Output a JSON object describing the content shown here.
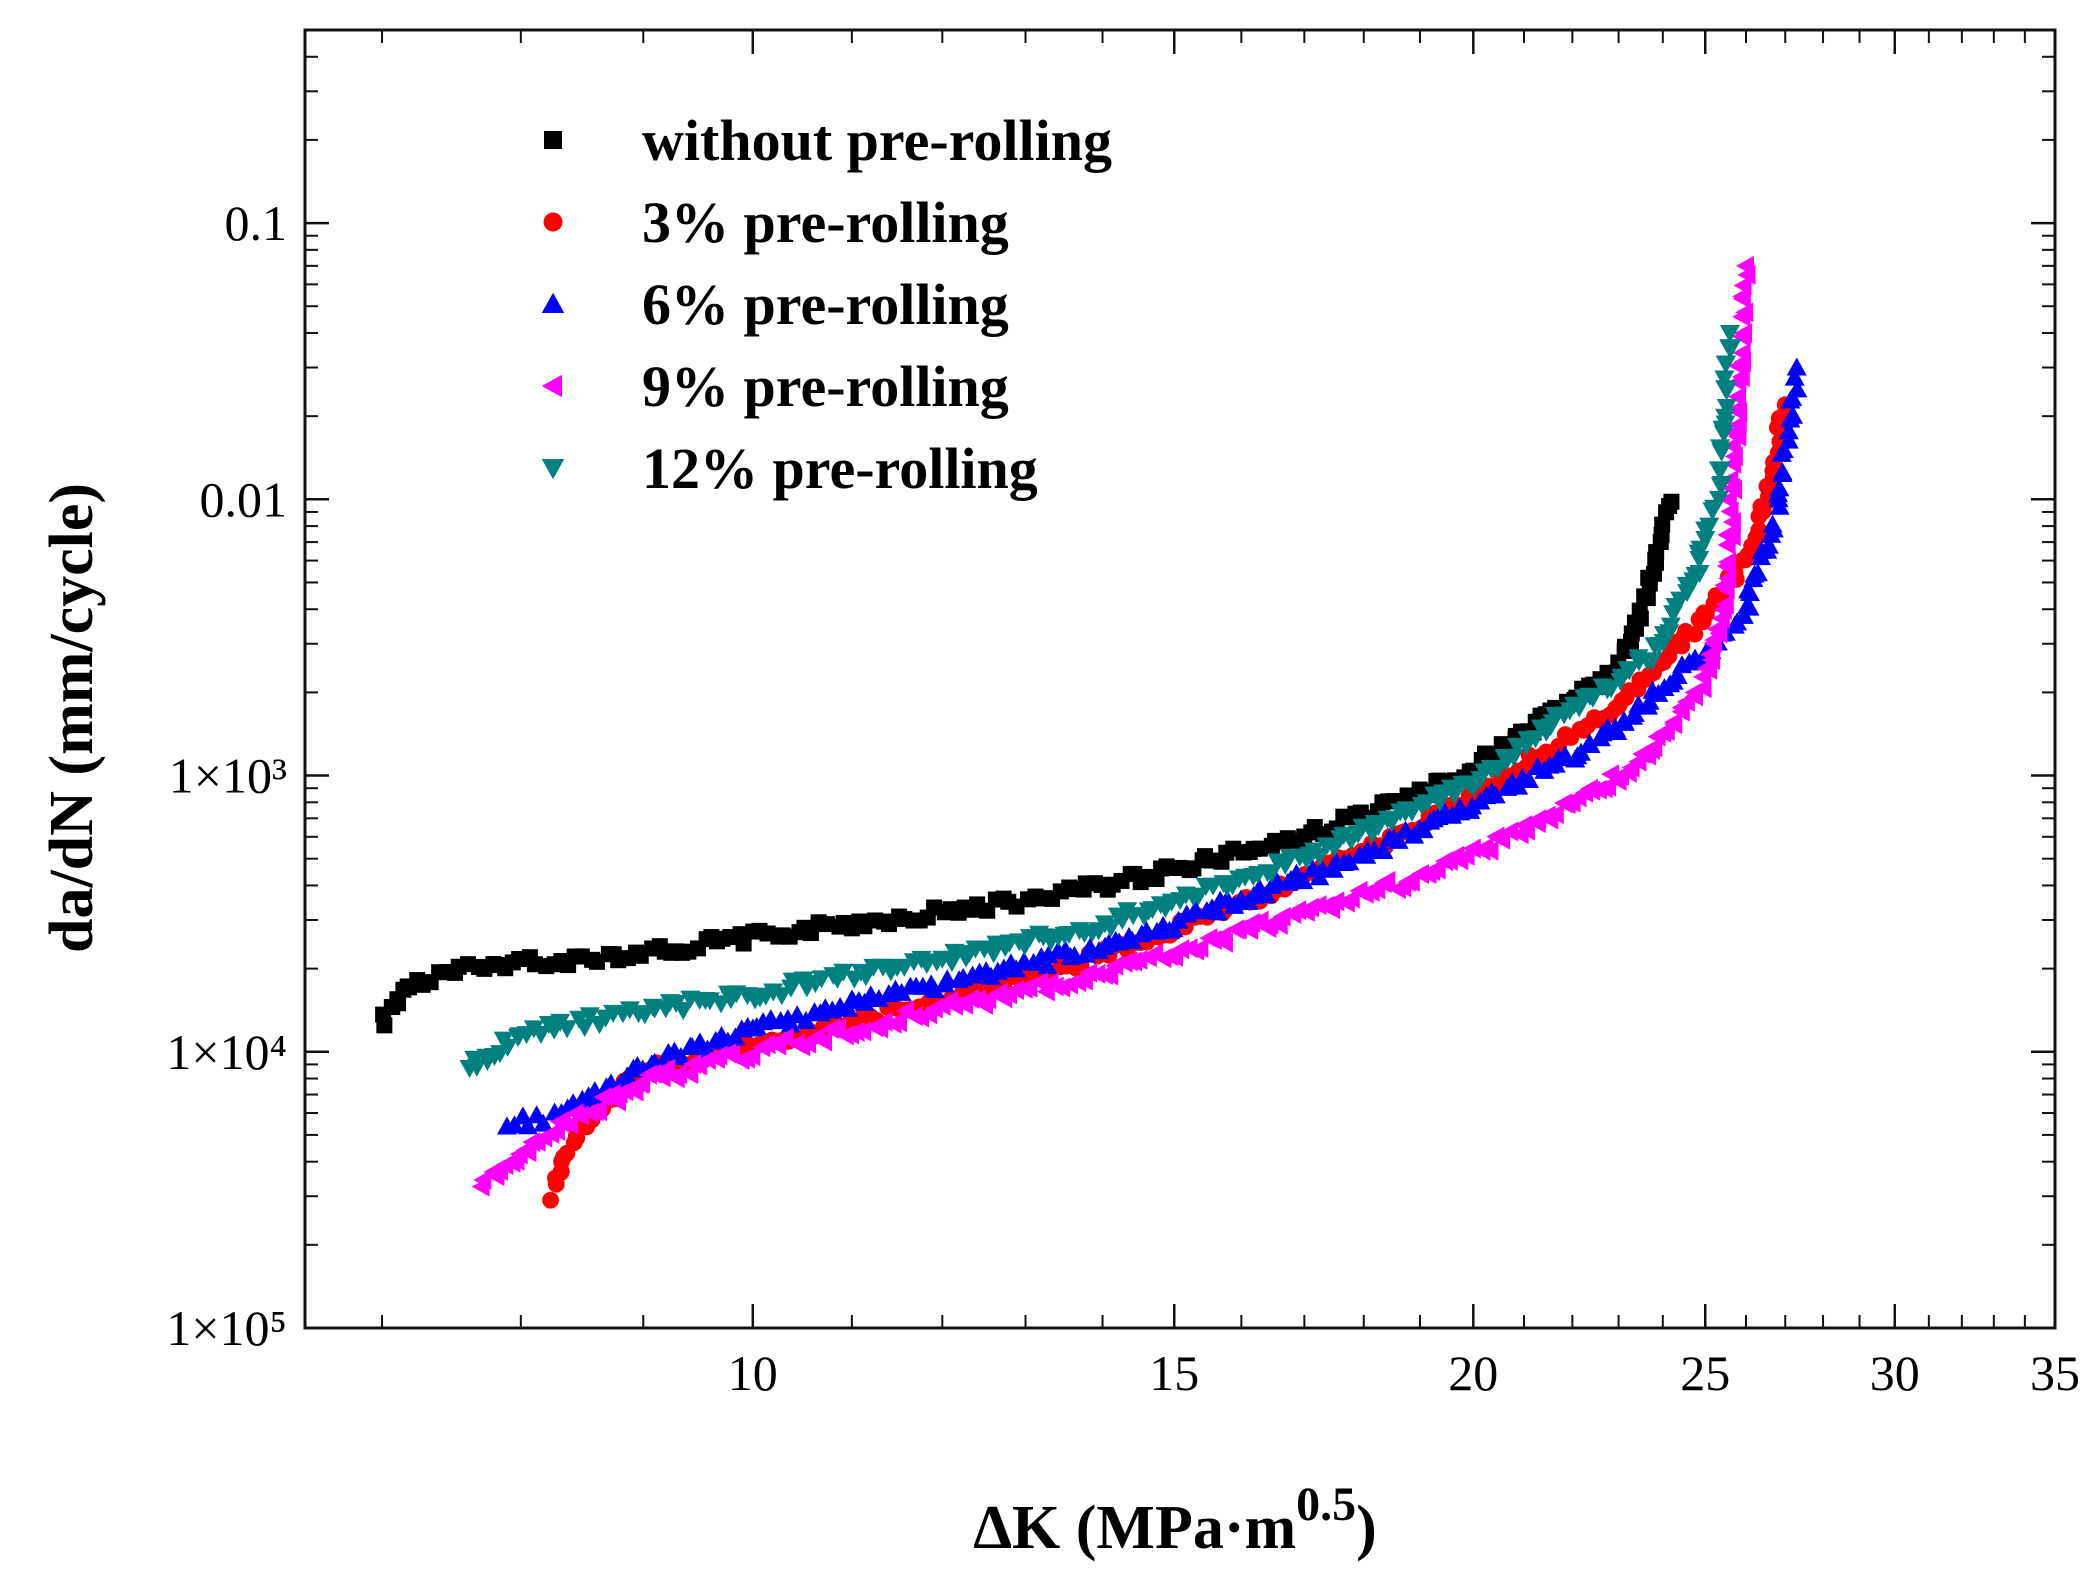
{
  "chart_data": {
    "type": "scatter",
    "title": "",
    "xlabel": "ΔK (MPa·m",
    "xlabel_sup": "0.5",
    "xlabel_close": ")",
    "ylabel": "da/dN (mm/cycle)",
    "x_scale": "log",
    "y_scale": "log",
    "xlim": [
      6.5,
      35
    ],
    "ylim": [
      1e-05,
      0.5
    ],
    "x_ticks": [
      10,
      15,
      20,
      25,
      30,
      35
    ],
    "x_tick_labels": [
      "10",
      "15",
      "20",
      "25",
      "30",
      "35"
    ],
    "y_ticks": [
      1e-05,
      0.0001,
      0.001,
      0.01,
      0.1
    ],
    "y_tick_labels": [
      "1×10⁵",
      "1×10⁴",
      "1×10³",
      "0.01",
      "0.1"
    ],
    "grid": false,
    "legend_position": "top-left",
    "series": [
      {
        "name": "without pre-rolling",
        "color": "#000000",
        "marker": "square",
        "x": [
          7.0,
          7.2,
          7.5,
          8.0,
          8.5,
          9.0,
          10.0,
          11.0,
          12.0,
          13.0,
          14.0,
          15.0,
          16.0,
          17.0,
          18.0,
          19.0,
          20.0,
          21.0,
          22.0,
          23.0,
          23.6,
          24.0,
          24.2
        ],
        "y": [
          0.00013,
          0.000175,
          0.000195,
          0.00021,
          0.000218,
          0.000228,
          0.00026,
          0.00029,
          0.00032,
          0.000355,
          0.0004,
          0.00046,
          0.00053,
          0.0006,
          0.00072,
          0.00085,
          0.00108,
          0.0014,
          0.0019,
          0.0024,
          0.0045,
          0.0075,
          0.0098
        ]
      },
      {
        "name": "3% pre-rolling",
        "color": "#ff0000",
        "marker": "circle",
        "x": [
          8.25,
          8.35,
          8.6,
          9.0,
          10.0,
          11.0,
          12.0,
          13.0,
          14.0,
          15.0,
          16.0,
          17.0,
          18.0,
          19.0,
          20.0,
          21.0,
          22.0,
          23.0,
          24.0,
          25.0,
          26.0,
          26.5,
          27.0
        ],
        "y": [
          3e-05,
          4.2e-05,
          6.2e-05,
          8.5e-05,
          0.000105,
          0.000128,
          0.000155,
          0.000185,
          0.000225,
          0.00028,
          0.00034,
          0.00042,
          0.00053,
          0.00066,
          0.00085,
          0.0011,
          0.0014,
          0.0018,
          0.0026,
          0.0038,
          0.006,
          0.01,
          0.022
        ]
      },
      {
        "name": "6% pre-rolling",
        "color": "#0000ff",
        "marker": "triangle-up",
        "x": [
          7.9,
          8.3,
          8.7,
          9.0,
          10.0,
          11.0,
          12.0,
          13.0,
          14.0,
          15.0,
          16.0,
          17.0,
          18.0,
          19.0,
          20.0,
          21.0,
          22.0,
          23.0,
          24.0,
          25.0,
          26.0,
          26.8,
          27.3
        ],
        "y": [
          5.5e-05,
          5.8e-05,
          7.5e-05,
          9e-05,
          0.00012,
          0.000148,
          0.000175,
          0.000205,
          0.000245,
          0.00029,
          0.00036,
          0.00043,
          0.00052,
          0.00063,
          0.0008,
          0.00098,
          0.0012,
          0.0015,
          0.0021,
          0.0028,
          0.004,
          0.009,
          0.03
        ]
      },
      {
        "name": "9% pre-rolling",
        "color": "#ff00ff",
        "marker": "triangle-left",
        "x": [
          7.7,
          8.0,
          8.3,
          8.6,
          9.0,
          10.0,
          11.0,
          12.0,
          13.0,
          14.0,
          15.0,
          16.0,
          17.0,
          18.0,
          19.0,
          20.0,
          21.0,
          22.0,
          23.0,
          24.0,
          25.0,
          25.5,
          26.0
        ],
        "y": [
          3.3e-05,
          4.2e-05,
          5.5e-05,
          6.2e-05,
          7.8e-05,
          0.0001,
          0.00012,
          0.000145,
          0.000165,
          0.000195,
          0.000225,
          0.00027,
          0.00032,
          0.00037,
          0.00043,
          0.00052,
          0.00063,
          0.0008,
          0.001,
          0.0014,
          0.0022,
          0.0045,
          0.07
        ]
      },
      {
        "name": "12% pre-rolling",
        "color": "#008080",
        "marker": "triangle-down",
        "x": [
          7.6,
          7.8,
          8.0,
          8.5,
          9.0,
          10.0,
          11.0,
          12.0,
          13.0,
          14.0,
          15.0,
          16.0,
          17.0,
          18.0,
          19.0,
          20.0,
          21.0,
          22.0,
          23.0,
          24.0,
          24.8,
          25.3,
          25.6
        ],
        "y": [
          8.8e-05,
          0.0001,
          0.000115,
          0.000128,
          0.00014,
          0.00016,
          0.00019,
          0.000215,
          0.00025,
          0.00029,
          0.00035,
          0.00042,
          0.0005,
          0.00063,
          0.00078,
          0.00095,
          0.0013,
          0.0018,
          0.0022,
          0.003,
          0.0055,
          0.01,
          0.04
        ]
      }
    ]
  }
}
